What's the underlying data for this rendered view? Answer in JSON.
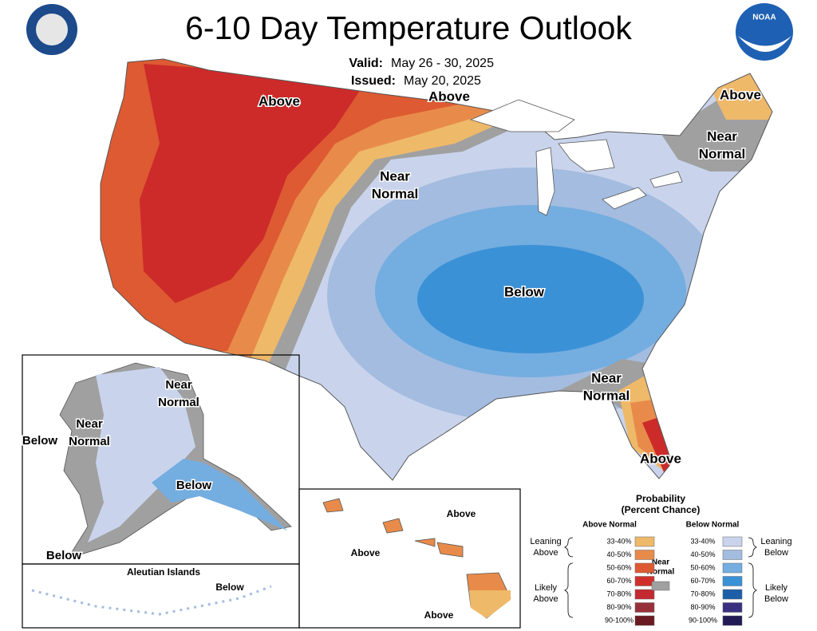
{
  "header": {
    "title": "6-10 Day Temperature Outlook",
    "valid_label": "Valid:",
    "valid": "May 26 - 30, 2025",
    "issued_label": "Issued:",
    "issued": "May 20, 2025",
    "logo": "NOAA"
  },
  "map_labels": [
    [
      "Above"
    ],
    [
      "Above"
    ],
    [
      "Near",
      "Normal"
    ],
    [
      "Above"
    ],
    [
      "Near",
      "Normal"
    ],
    [
      "Below"
    ],
    [
      "Near",
      "Normal"
    ],
    [
      "Above"
    ],
    [
      "Near",
      "Normal"
    ],
    [
      "Near",
      "Normal"
    ],
    [
      "Below"
    ],
    [
      "Below"
    ],
    [
      "Below"
    ],
    [
      "Below"
    ],
    [
      "Above"
    ],
    [
      "Above"
    ],
    [
      "Above"
    ]
  ],
  "inset_title": "Aleutian Islands",
  "legend": {
    "title": [
      "Probability",
      "(Percent Chance)"
    ],
    "above_header": "Above Normal",
    "below_header": "Below Normal",
    "near": [
      "Near",
      "Normal"
    ],
    "near_color": "#a0a0a0",
    "leaning_above": [
      "Leaning",
      "Above"
    ],
    "likely_above": [
      "Likely",
      "Above"
    ],
    "leaning_below": [
      "Leaning",
      "Below"
    ],
    "likely_below": [
      "Likely",
      "Below"
    ],
    "above_bins": [
      {
        "label": "33-40%",
        "color": "#efb96a"
      },
      {
        "label": "40-50%",
        "color": "#e88b4a"
      },
      {
        "label": "50-60%",
        "color": "#de5a32"
      },
      {
        "label": "60-70%",
        "color": "#d0302c"
      },
      {
        "label": "70-80%",
        "color": "#c42a32"
      },
      {
        "label": "80-90%",
        "color": "#98303a"
      },
      {
        "label": "90-100%",
        "color": "#6a1a20"
      }
    ],
    "below_bins": [
      {
        "label": "33-40%",
        "color": "#c9d4ec"
      },
      {
        "label": "40-50%",
        "color": "#a3bce0"
      },
      {
        "label": "50-60%",
        "color": "#74ade0"
      },
      {
        "label": "60-70%",
        "color": "#3b91d6"
      },
      {
        "label": "70-80%",
        "color": "#1c5fa8"
      },
      {
        "label": "80-90%",
        "color": "#3a2f80"
      },
      {
        "label": "90-100%",
        "color": "#221a55"
      }
    ]
  }
}
